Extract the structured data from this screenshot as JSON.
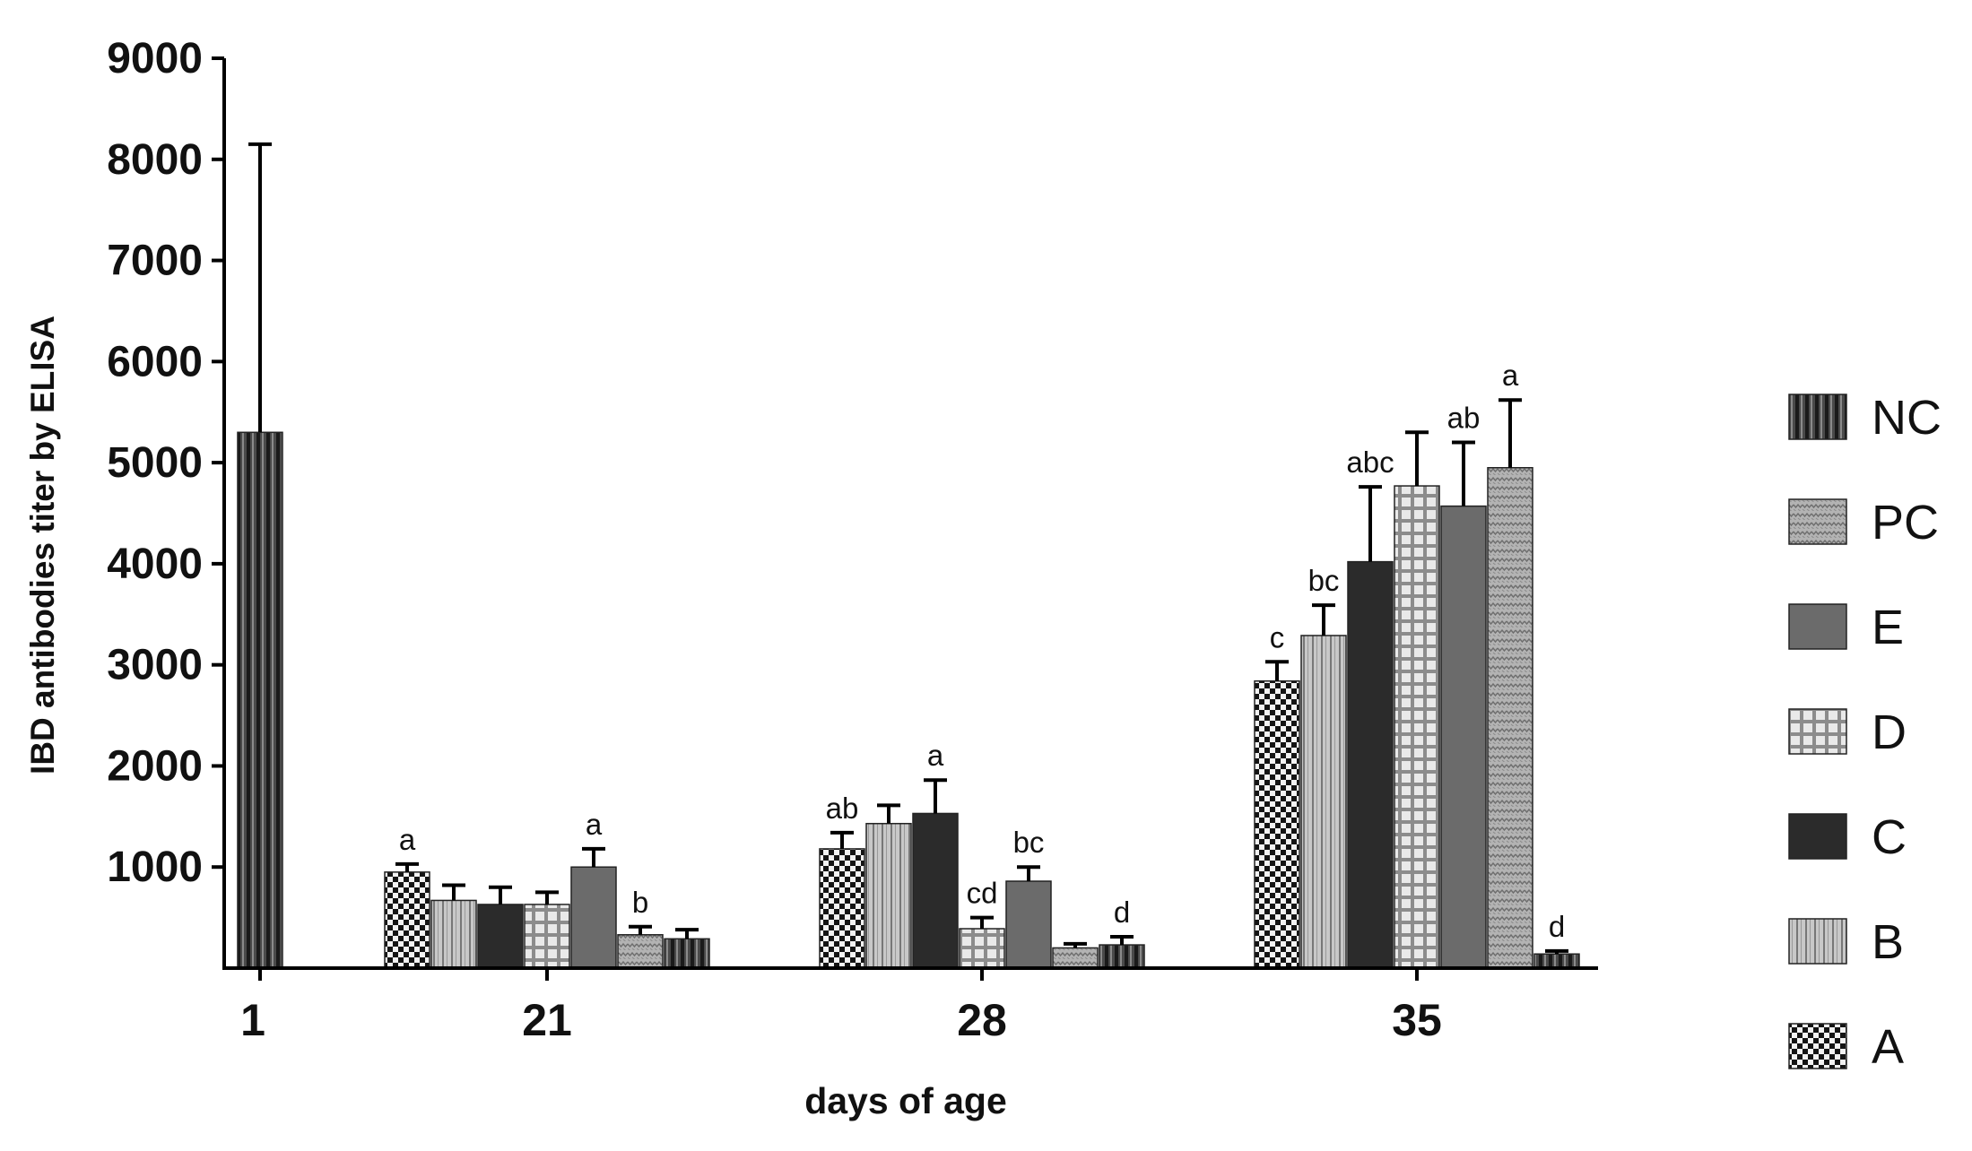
{
  "chart_data": {
    "type": "bar",
    "xlabel": "days of age",
    "ylabel": "IBD antibodies titer by ELISA",
    "ylim": [
      0,
      9000
    ],
    "yticks": [
      "9000",
      "8000",
      "7000",
      "6000",
      "5000",
      "4000",
      "3000",
      "2000",
      "1000"
    ],
    "grid": false,
    "legend_position": "right",
    "groups": [
      {
        "label": "1",
        "bars": [
          {
            "series": "NC",
            "value": 5300,
            "error": 2850,
            "letter": ""
          }
        ]
      },
      {
        "label": "21",
        "bars": [
          {
            "series": "A",
            "value": 950,
            "error": 80,
            "letter": "a"
          },
          {
            "series": "B",
            "value": 670,
            "error": 150,
            "letter": ""
          },
          {
            "series": "C",
            "value": 630,
            "error": 170,
            "letter": ""
          },
          {
            "series": "D",
            "value": 630,
            "error": 120,
            "letter": ""
          },
          {
            "series": "E",
            "value": 1000,
            "error": 180,
            "letter": "a"
          },
          {
            "series": "PC",
            "value": 330,
            "error": 80,
            "letter": "b"
          },
          {
            "series": "NC",
            "value": 290,
            "error": 90,
            "letter": ""
          }
        ]
      },
      {
        "label": "28",
        "bars": [
          {
            "series": "A",
            "value": 1180,
            "error": 160,
            "letter": "ab"
          },
          {
            "series": "B",
            "value": 1430,
            "error": 180,
            "letter": ""
          },
          {
            "series": "C",
            "value": 1530,
            "error": 330,
            "letter": "a"
          },
          {
            "series": "D",
            "value": 390,
            "error": 110,
            "letter": "cd"
          },
          {
            "series": "E",
            "value": 860,
            "error": 140,
            "letter": "bc"
          },
          {
            "series": "PC",
            "value": 200,
            "error": 40,
            "letter": ""
          },
          {
            "series": "NC",
            "value": 230,
            "error": 80,
            "letter": "d"
          }
        ]
      },
      {
        "label": "35",
        "bars": [
          {
            "series": "A",
            "value": 2840,
            "error": 190,
            "letter": "c"
          },
          {
            "series": "B",
            "value": 3290,
            "error": 300,
            "letter": "bc"
          },
          {
            "series": "C",
            "value": 4020,
            "error": 740,
            "letter": "abc"
          },
          {
            "series": "D",
            "value": 4770,
            "error": 530,
            "letter": ""
          },
          {
            "series": "E",
            "value": 4570,
            "error": 630,
            "letter": "ab"
          },
          {
            "series": "PC",
            "value": 4950,
            "error": 670,
            "letter": "a"
          },
          {
            "series": "NC",
            "value": 140,
            "error": 30,
            "letter": "d"
          }
        ]
      }
    ],
    "legend": [
      {
        "name": "NC",
        "pattern": "vstripe-dark"
      },
      {
        "name": "PC",
        "pattern": "dots-gray"
      },
      {
        "name": "E",
        "pattern": "solid-gray"
      },
      {
        "name": "D",
        "pattern": "grid-light"
      },
      {
        "name": "C",
        "pattern": "solid-dark"
      },
      {
        "name": "B",
        "pattern": "vstripe-light"
      },
      {
        "name": "A",
        "pattern": "checker"
      }
    ]
  }
}
